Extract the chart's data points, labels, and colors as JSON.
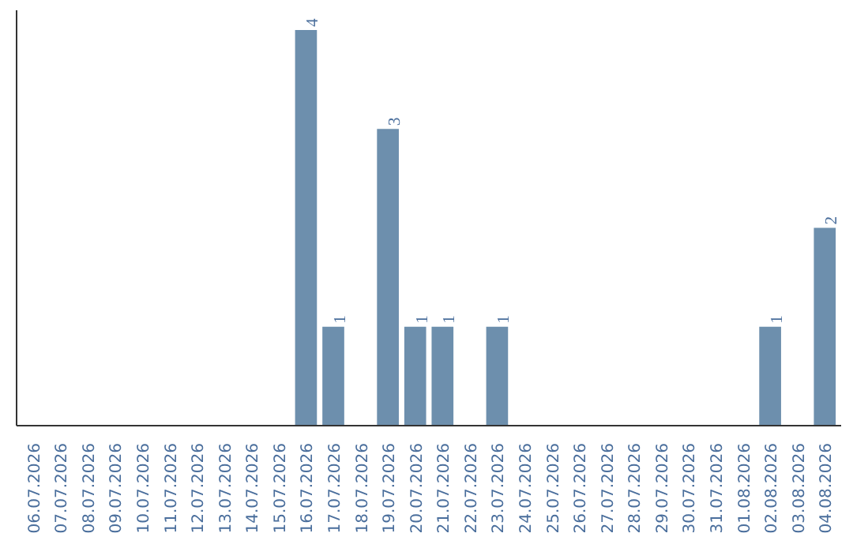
{
  "chart_data": {
    "type": "bar",
    "categories": [
      "06.07.2026",
      "07.07.2026",
      "08.07.2026",
      "09.07.2026",
      "10.07.2026",
      "11.07.2026",
      "12.07.2026",
      "13.07.2026",
      "14.07.2026",
      "15.07.2026",
      "16.07.2026",
      "17.07.2026",
      "18.07.2026",
      "19.07.2026",
      "20.07.2026",
      "21.07.2026",
      "22.07.2026",
      "23.07.2026",
      "24.07.2026",
      "25.07.2026",
      "26.07.2026",
      "27.07.2026",
      "28.07.2026",
      "29.07.2026",
      "30.07.2026",
      "31.07.2026",
      "01.08.2026",
      "02.08.2026",
      "03.08.2026",
      "04.08.2026"
    ],
    "values": [
      0,
      0,
      0,
      0,
      0,
      0,
      0,
      0,
      0,
      0,
      4,
      1,
      0,
      3,
      1,
      1,
      0,
      1,
      0,
      0,
      0,
      0,
      0,
      0,
      0,
      0,
      0,
      1,
      0,
      2
    ],
    "value_labels": [
      null,
      null,
      null,
      null,
      null,
      null,
      null,
      null,
      null,
      null,
      "4",
      "1",
      null,
      "3",
      "1",
      "1",
      null,
      "1",
      null,
      null,
      null,
      null,
      null,
      null,
      null,
      null,
      null,
      "1",
      null,
      "2"
    ],
    "color": "#6d8fad"
  }
}
